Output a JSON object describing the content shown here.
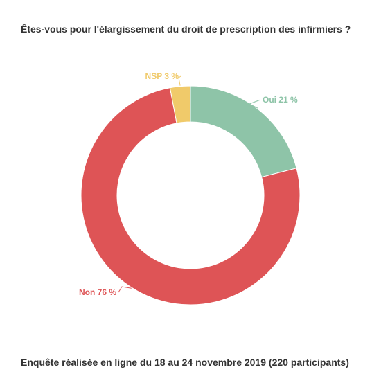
{
  "title": "Êtes-vous pour l'élargissement du droit de prescription des infirmiers ?",
  "footnote": "Enquête réalisée en ligne du 18 au 24 novembre 2019 (220 participants)",
  "chart_data": {
    "type": "pie",
    "donut": true,
    "categories": [
      "Oui",
      "Non",
      "NSP"
    ],
    "values": [
      21,
      76,
      3
    ],
    "labels": [
      "Oui 21 %",
      "Non 76 %",
      "NSP 3 %"
    ],
    "colors": [
      "#8ec4a8",
      "#de5456",
      "#f0ca6a"
    ],
    "unit": "%"
  }
}
